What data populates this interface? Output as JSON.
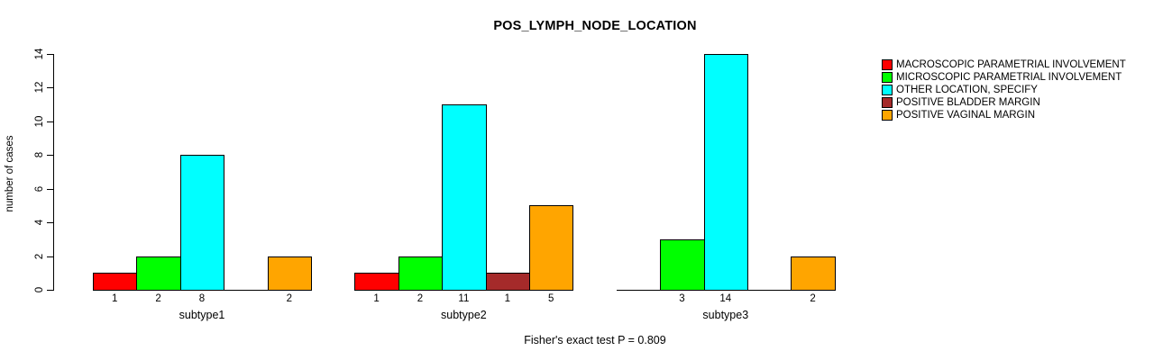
{
  "chart_data": {
    "type": "bar",
    "title": "POS_LYMPH_NODE_LOCATION",
    "ylabel": "number of cases",
    "xlabel": "",
    "footer": "Fisher's exact test P = 0.809",
    "ylim": [
      0,
      14
    ],
    "yticks": [
      0,
      2,
      4,
      6,
      8,
      10,
      12,
      14
    ],
    "grid": false,
    "legend_position": "topright",
    "bar_value_labels": true,
    "categories": [
      "subtype1",
      "subtype2",
      "subtype3"
    ],
    "series": [
      {
        "name": "MACROSCOPIC PARAMETRIAL INVOLVEMENT",
        "color": "#FF0000",
        "values": [
          1,
          1,
          0
        ]
      },
      {
        "name": "MICROSCOPIC PARAMETRIAL INVOLVEMENT",
        "color": "#00FF00",
        "values": [
          2,
          2,
          3
        ]
      },
      {
        "name": "OTHER LOCATION, SPECIFY",
        "color": "#00FFFF",
        "values": [
          8,
          11,
          14
        ]
      },
      {
        "name": "POSITIVE BLADDER MARGIN",
        "color": "#A52A2A",
        "values": [
          0,
          1,
          0
        ]
      },
      {
        "name": "POSITIVE VAGINAL MARGIN",
        "color": "#FFA500",
        "values": [
          2,
          5,
          2
        ]
      }
    ]
  }
}
